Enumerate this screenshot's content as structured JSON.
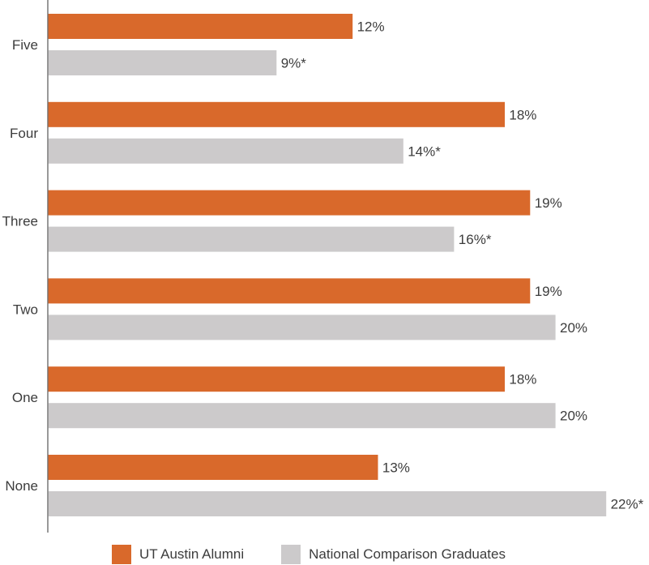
{
  "chart_data": {
    "type": "bar",
    "orientation": "horizontal",
    "categories": [
      "Five",
      "Four",
      "Three",
      "Two",
      "One",
      "None"
    ],
    "series": [
      {
        "name": "UT Austin Alumni",
        "color": "#d9692b",
        "values": [
          12,
          18,
          19,
          19,
          18,
          13
        ],
        "labels": [
          "12%",
          "18%",
          "19%",
          "19%",
          "18%",
          "13%"
        ]
      },
      {
        "name": "National Comparison Graduates",
        "color": "#cccacb",
        "values": [
          9,
          14,
          16,
          20,
          20,
          22
        ],
        "labels": [
          "9%*",
          "14%*",
          "16%*",
          "20%",
          "20%",
          "22%*"
        ]
      }
    ],
    "xlim": [
      0,
      22
    ],
    "grid": false,
    "legend_position": "bottom"
  }
}
